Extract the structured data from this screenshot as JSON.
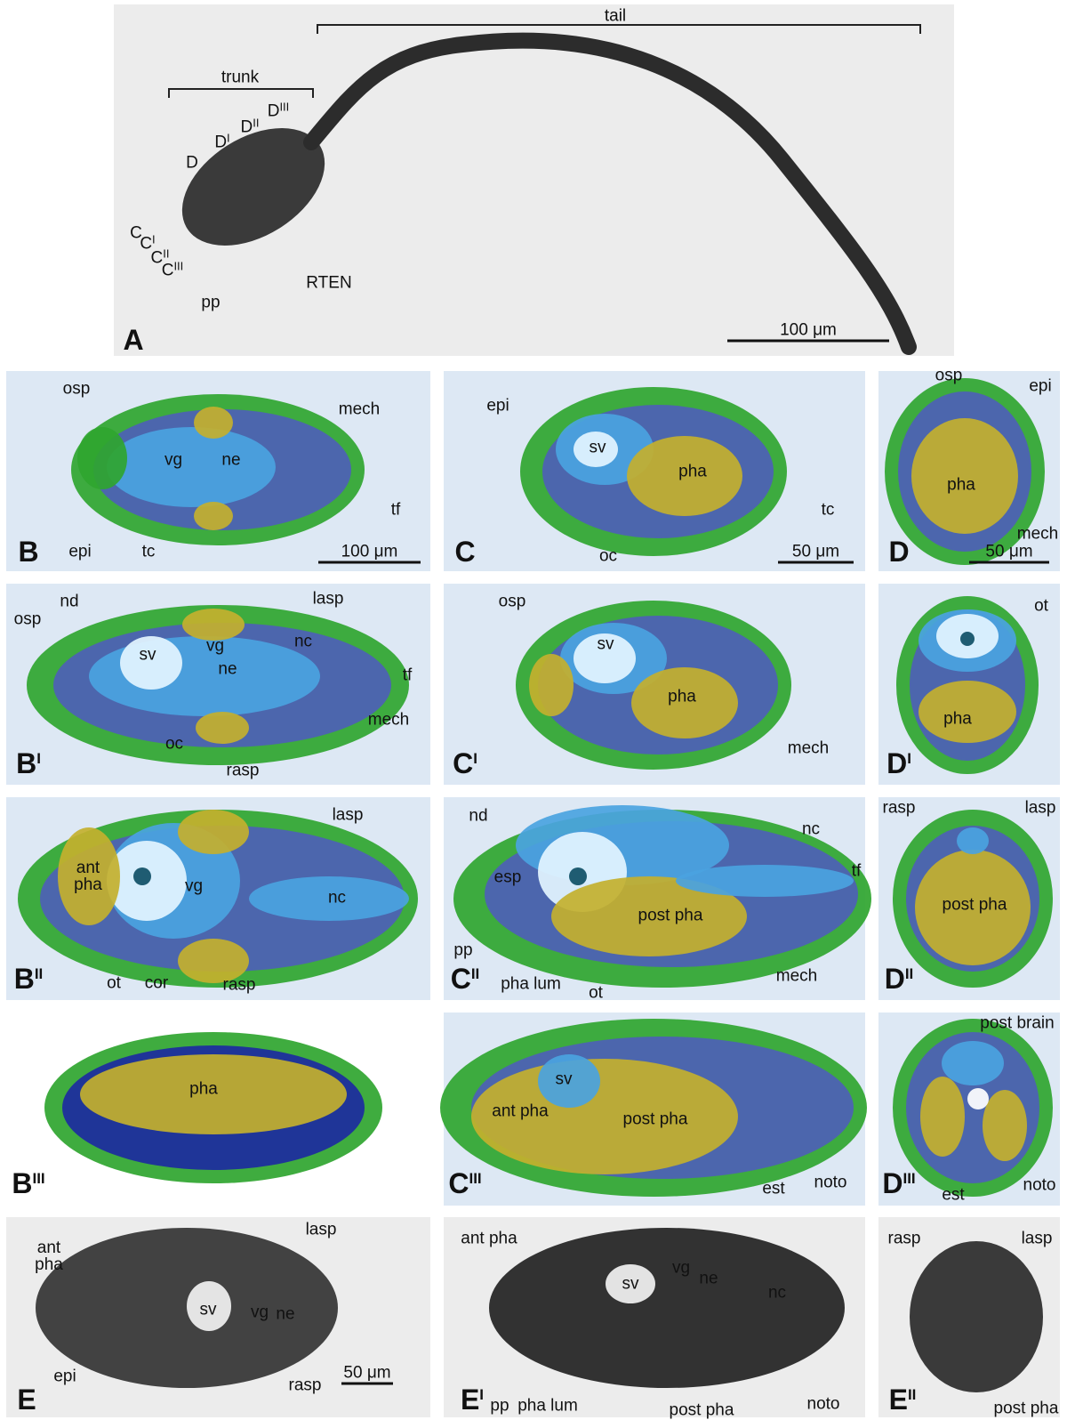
{
  "panels": [
    {
      "letter": "A",
      "scale_bar": "100 μm",
      "labels": [
        "trunk",
        "tail",
        "D",
        {
          "text": "D",
          "sup": "I"
        },
        {
          "text": "D",
          "sup": "II"
        },
        {
          "text": "D",
          "sup": "III"
        },
        "C",
        {
          "text": "C",
          "sup": "I"
        },
        {
          "text": "C",
          "sup": "II"
        },
        {
          "text": "C",
          "sup": "III"
        },
        "RTEN",
        "pp"
      ]
    },
    {
      "letter": "B",
      "scale_bar": "100 μm",
      "labels": [
        "osp",
        "mech",
        "vg",
        "ne",
        "epi",
        "tc",
        "tf"
      ]
    },
    {
      "letter": "C",
      "scale_bar": "50 μm",
      "labels": [
        "epi",
        "sv",
        "pha",
        "tc",
        "oc"
      ]
    },
    {
      "letter": "D",
      "scale_bar": "50 μm",
      "labels": [
        "osp",
        "epi",
        "pha",
        "mech"
      ]
    },
    {
      "letter": {
        "text": "B",
        "sup": "I"
      },
      "labels": [
        "nd",
        "lasp",
        "osp",
        "sv",
        "vg",
        "ne",
        "nc",
        "tf",
        "mech",
        "oc",
        "rasp"
      ]
    },
    {
      "letter": {
        "text": "C",
        "sup": "I"
      },
      "labels": [
        "osp",
        "sv",
        "pha",
        "mech"
      ]
    },
    {
      "letter": {
        "text": "D",
        "sup": "I"
      },
      "labels": [
        "ot",
        "pha"
      ]
    },
    {
      "letter": {
        "text": "B",
        "sup": "II"
      },
      "labels": [
        "lasp",
        "ant pha",
        "vg",
        "nc",
        "ot",
        "cor",
        "rasp"
      ]
    },
    {
      "letter": {
        "text": "C",
        "sup": "II"
      },
      "labels": [
        "nd",
        "nc",
        "tf",
        "esp",
        "post pha",
        "pp",
        "pha lum",
        "ot",
        "mech"
      ]
    },
    {
      "letter": {
        "text": "D",
        "sup": "II"
      },
      "labels": [
        "rasp",
        "lasp",
        "post pha"
      ]
    },
    {
      "letter": {
        "text": "B",
        "sup": "III"
      },
      "labels": [
        "pha"
      ]
    },
    {
      "letter": {
        "text": "C",
        "sup": "III"
      },
      "labels": [
        "sv",
        "ant pha",
        "post pha",
        "est",
        "noto"
      ]
    },
    {
      "letter": {
        "text": "D",
        "sup": "III"
      },
      "labels": [
        "post brain",
        "est",
        "noto"
      ]
    },
    {
      "letter": "E",
      "scale_bar": "50 μm",
      "labels": [
        "ant pha",
        "lasp",
        "sv",
        "vg",
        "ne",
        "epi",
        "rasp"
      ]
    },
    {
      "letter": {
        "text": "E",
        "sup": "I"
      },
      "labels": [
        "ant pha",
        "vg",
        "ne",
        "sv",
        "nc",
        "pp",
        "pha lum",
        "post pha",
        "noto"
      ]
    },
    {
      "letter": {
        "text": "E",
        "sup": "II"
      },
      "labels": [
        "rasp",
        "lasp",
        "post pha"
      ]
    }
  ]
}
